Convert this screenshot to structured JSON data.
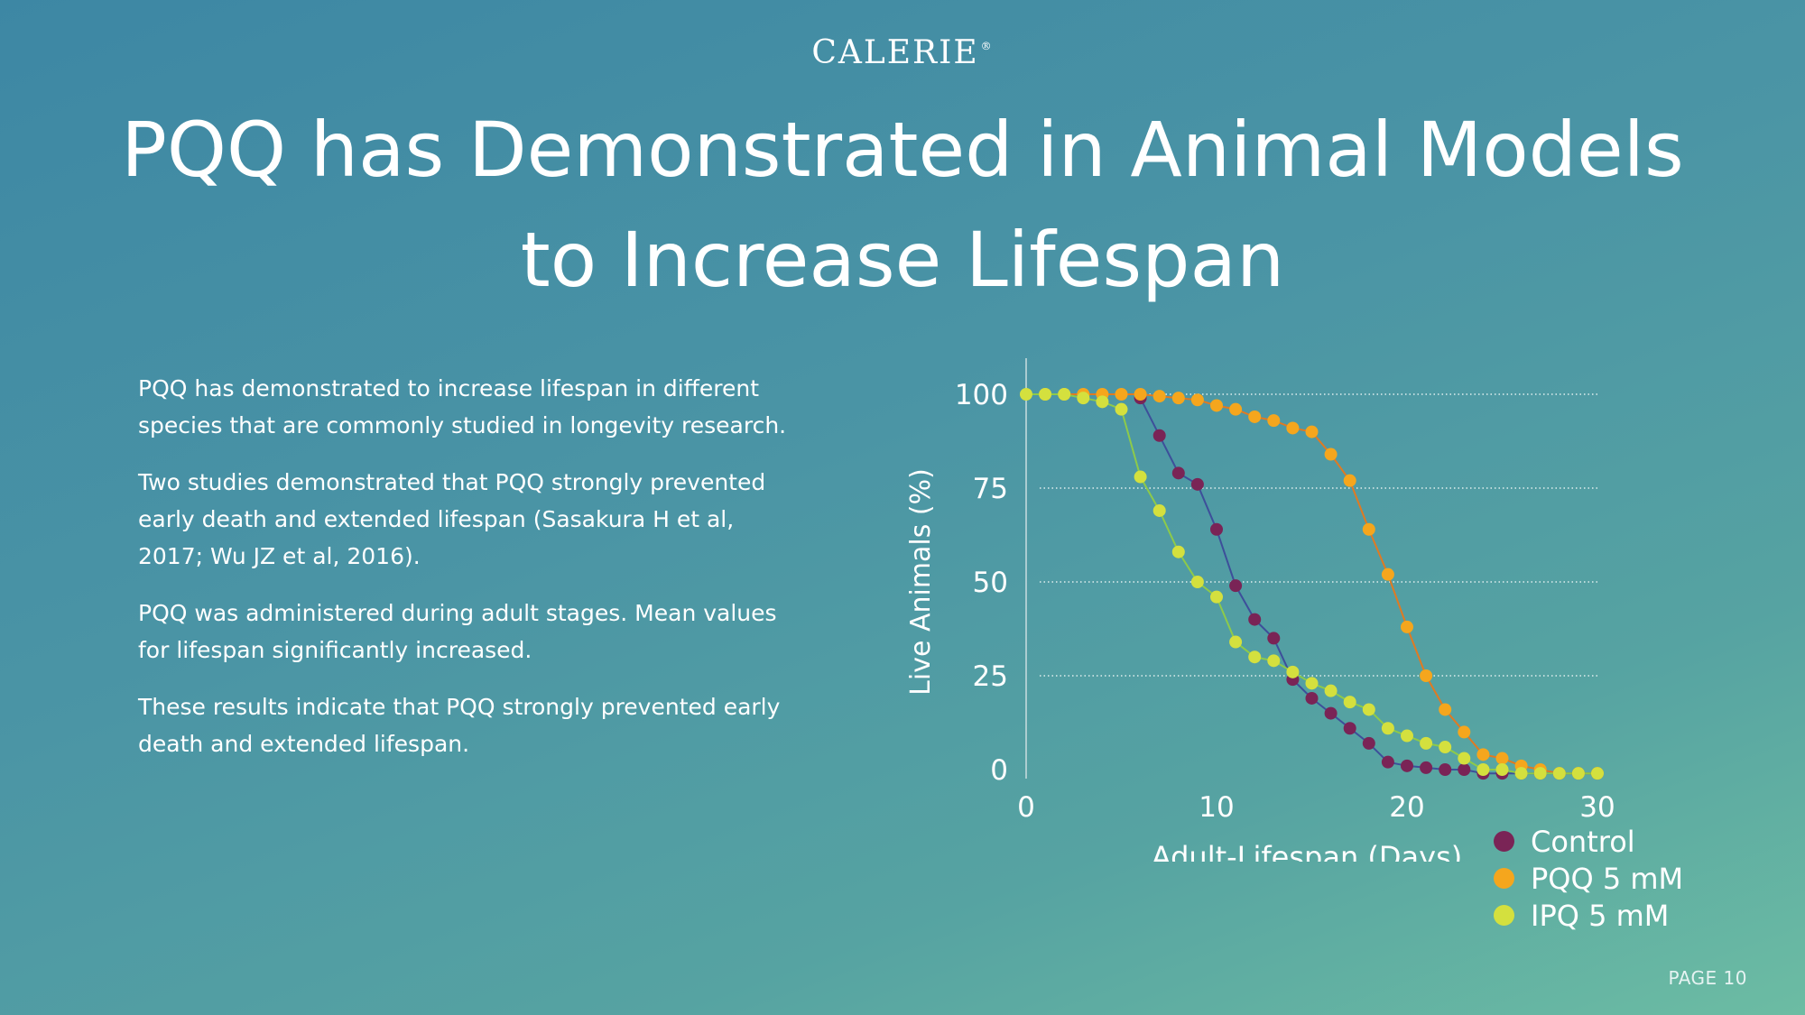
{
  "brand": {
    "name": "CALERIE",
    "mark": "®"
  },
  "title": {
    "line1": "PQQ has Demonstrated in Animal Models",
    "line2": "to Increase Lifespan"
  },
  "paragraphs": [
    "PQQ has demonstrated to increase lifespan in different species that are commonly studied in longevity research.",
    "Two studies demonstrated that PQQ strongly prevented early death and extended lifespan (Sasakura H et al, 2017; Wu JZ et al, 2016).",
    "PQQ was administered during adult stages. Mean values for lifespan significantly increased.",
    "These results indicate that PQQ strongly prevented early death and extended lifespan."
  ],
  "page_label": "PAGE 10",
  "chart_data": {
    "type": "line",
    "xlabel": "Adult-Lifespan (Days)",
    "ylabel": "Live Animals (%)",
    "xlim": [
      0,
      30
    ],
    "ylim": [
      0,
      100
    ],
    "xticks": [
      "0",
      "10",
      "20",
      "30"
    ],
    "yticks": [
      "0",
      "25",
      "50",
      "75",
      "100"
    ],
    "grid": "horizontal dotted",
    "legend_position": "bottom-right",
    "series": [
      {
        "name": "Control",
        "color": "#7a2456",
        "line_color": "#3d4f9a",
        "points": [
          [
            6,
            99
          ],
          [
            7,
            89
          ],
          [
            8,
            79
          ],
          [
            9,
            76
          ],
          [
            10,
            64
          ],
          [
            11,
            49
          ],
          [
            12,
            40
          ],
          [
            13,
            35
          ],
          [
            14,
            24
          ],
          [
            15,
            19
          ],
          [
            16,
            15
          ],
          [
            17,
            11
          ],
          [
            18,
            7
          ],
          [
            19,
            2
          ],
          [
            20,
            1
          ],
          [
            21,
            0.5
          ],
          [
            22,
            0
          ],
          [
            23,
            0
          ],
          [
            24,
            -1
          ],
          [
            25,
            -1
          ],
          [
            26,
            -1
          ],
          [
            27,
            -1
          ],
          [
            28,
            -1
          ],
          [
            29,
            -1
          ],
          [
            30,
            -1
          ]
        ]
      },
      {
        "name": "PQQ 5 mM",
        "color": "#f5a61d",
        "line_color": "#e07a22",
        "points": [
          [
            1,
            100
          ],
          [
            2,
            100
          ],
          [
            3,
            100
          ],
          [
            4,
            100
          ],
          [
            5,
            100
          ],
          [
            6,
            100
          ],
          [
            7,
            99.5
          ],
          [
            8,
            99
          ],
          [
            9,
            98.5
          ],
          [
            10,
            97
          ],
          [
            11,
            96
          ],
          [
            12,
            94
          ],
          [
            13,
            93
          ],
          [
            14,
            91
          ],
          [
            15,
            90
          ],
          [
            16,
            84
          ],
          [
            17,
            77
          ],
          [
            18,
            64
          ],
          [
            19,
            52
          ],
          [
            20,
            38
          ],
          [
            21,
            25
          ],
          [
            22,
            16
          ],
          [
            23,
            10
          ],
          [
            24,
            4
          ],
          [
            25,
            3
          ],
          [
            26,
            1
          ],
          [
            27,
            0
          ],
          [
            28,
            -1
          ],
          [
            29,
            -1
          ],
          [
            30,
            -1
          ]
        ]
      },
      {
        "name": "IPQ 5 mM",
        "color": "#d4e03e",
        "line_color": "#8dca4a",
        "points": [
          [
            0,
            100
          ],
          [
            1,
            100
          ],
          [
            2,
            100
          ],
          [
            3,
            99
          ],
          [
            4,
            98
          ],
          [
            5,
            96
          ],
          [
            6,
            78
          ],
          [
            7,
            69
          ],
          [
            8,
            58
          ],
          [
            9,
            50
          ],
          [
            10,
            46
          ],
          [
            11,
            34
          ],
          [
            12,
            30
          ],
          [
            13,
            29
          ],
          [
            14,
            26
          ],
          [
            15,
            23
          ],
          [
            16,
            21
          ],
          [
            17,
            18
          ],
          [
            18,
            16
          ],
          [
            19,
            11
          ],
          [
            20,
            9
          ],
          [
            21,
            7
          ],
          [
            22,
            6
          ],
          [
            23,
            3
          ],
          [
            24,
            0
          ],
          [
            25,
            0
          ],
          [
            26,
            -1
          ],
          [
            27,
            -1
          ],
          [
            28,
            -1
          ],
          [
            29,
            -1
          ],
          [
            30,
            -1
          ]
        ]
      }
    ]
  }
}
